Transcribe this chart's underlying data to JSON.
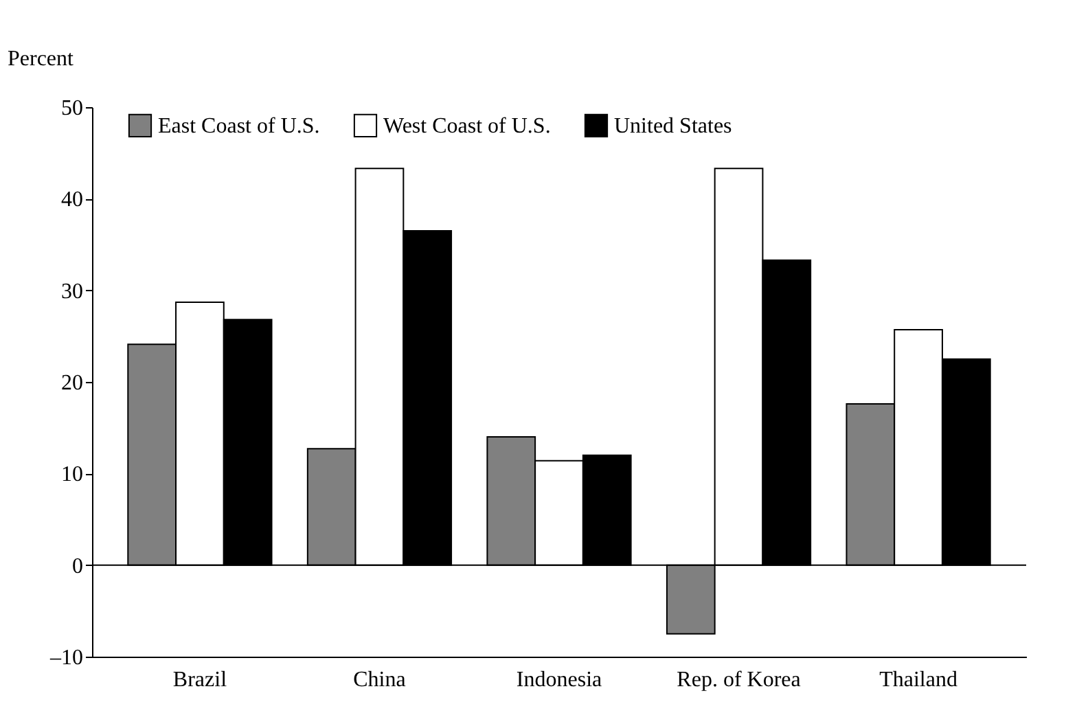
{
  "chart_data": {
    "type": "bar",
    "ylabel": "Percent",
    "categories": [
      "Brazil",
      "China",
      "Indonesia",
      "Rep. of Korea",
      "Thailand"
    ],
    "series": [
      {
        "name": "East Coast of U.S.",
        "color": "#808080",
        "values": [
          24.1,
          12.7,
          14.0,
          -7.5,
          17.6
        ]
      },
      {
        "name": "West Coast of U.S.",
        "color": "#ffffff",
        "values": [
          28.7,
          43.3,
          11.4,
          43.3,
          25.7
        ]
      },
      {
        "name": "United States",
        "color": "#000000",
        "values": [
          26.8,
          36.5,
          12.0,
          33.3,
          22.5
        ]
      }
    ],
    "ylim": [
      -10,
      50
    ],
    "yticks": [
      {
        "value": -10,
        "label": "–10"
      },
      0,
      10,
      20,
      30,
      40,
      50
    ],
    "ref_lines": [
      {
        "axis": "y",
        "value": 0,
        "color": "#000000"
      }
    ],
    "grid": false,
    "legend": "top"
  }
}
